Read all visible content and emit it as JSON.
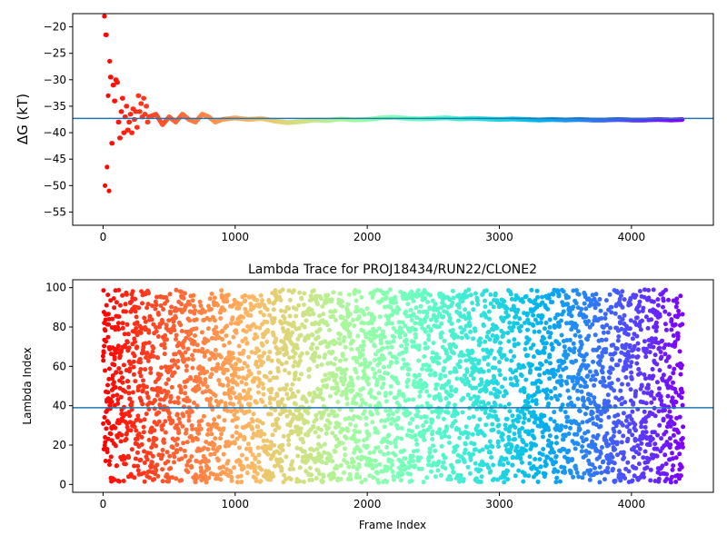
{
  "chart_data": [
    {
      "type": "scatter",
      "title": "",
      "xlabel": "",
      "ylabel": "ΔG (kT)",
      "xlim": [
        -230,
        4620
      ],
      "ylim": [
        -57.5,
        -17.5
      ],
      "xticks": [
        0,
        1000,
        2000,
        3000,
        4000
      ],
      "yticks": [
        -55,
        -50,
        -45,
        -40,
        -35,
        -30,
        -25,
        -20
      ],
      "ytick_labels": [
        "−55",
        "−50",
        "−45",
        "−40",
        "−35",
        "−30",
        "−25",
        "−20"
      ],
      "hline": -37.3,
      "hline_color": "#1f77b4",
      "colormap": "rainbow",
      "x_max": 4400,
      "series": [
        {
          "x": [
            10,
            15,
            25,
            30,
            38,
            45,
            50,
            60,
            70,
            80,
            90,
            100,
            110,
            120,
            130,
            140,
            150,
            160,
            170,
            180,
            190,
            200,
            210,
            220,
            230,
            240,
            250,
            260,
            270,
            280,
            290,
            300,
            310,
            320,
            330,
            340,
            350,
            400,
            450,
            500,
            550,
            600,
            650,
            700,
            750,
            800,
            850,
            900,
            1000,
            1100,
            1200,
            1300,
            1400,
            1500,
            1600,
            1700,
            1800,
            1900,
            2000,
            2100,
            2200,
            2300,
            2400,
            2500,
            2600,
            2700,
            2800,
            2900,
            3000,
            3100,
            3200,
            3300,
            3400,
            3500,
            3600,
            3700,
            3800,
            3900,
            4000,
            4100,
            4200,
            4300,
            4390
          ],
          "y": [
            -18,
            -50,
            -21.5,
            -46.5,
            -33,
            -51,
            -26.5,
            -29.5,
            -42,
            -31,
            -34,
            -30,
            -30.5,
            -38,
            -41,
            -36,
            -33.5,
            -40,
            -37,
            -35,
            -39.5,
            -38,
            -36.5,
            -40,
            -35.5,
            -37.5,
            -36,
            -39,
            -33,
            -36,
            -34.5,
            -37,
            -33.5,
            -36.5,
            -35,
            -38,
            -37,
            -36.5,
            -38.5,
            -37,
            -38,
            -36.5,
            -37.5,
            -38,
            -36.5,
            -37,
            -38,
            -37.5,
            -37.2,
            -37.5,
            -37.3,
            -37.8,
            -38.1,
            -37.9,
            -37.6,
            -37.7,
            -37.4,
            -37.6,
            -37.5,
            -37.2,
            -37.1,
            -37.3,
            -37.4,
            -37.3,
            -37.2,
            -37.4,
            -37.3,
            -37.4,
            -37.5,
            -37.4,
            -37.5,
            -37.6,
            -37.5,
            -37.6,
            -37.5,
            -37.6,
            -37.6,
            -37.5,
            -37.6,
            -37.6,
            -37.5,
            -37.6,
            -37.5
          ]
        }
      ]
    },
    {
      "type": "scatter",
      "title": "Lambda Trace for PROJ18434/RUN22/CLONE2",
      "xlabel": "Frame Index",
      "ylabel": "Lambda Index",
      "xlim": [
        -230,
        4620
      ],
      "ylim": [
        -4,
        104
      ],
      "xticks": [
        0,
        1000,
        2000,
        3000,
        4000
      ],
      "yticks": [
        0,
        20,
        40,
        60,
        80,
        100
      ],
      "hline": 39,
      "hline_color": "#1f77b4",
      "colormap": "rainbow",
      "x_range": [
        0,
        4390
      ],
      "y_range": [
        1,
        99
      ],
      "point_count": 4400
    }
  ]
}
